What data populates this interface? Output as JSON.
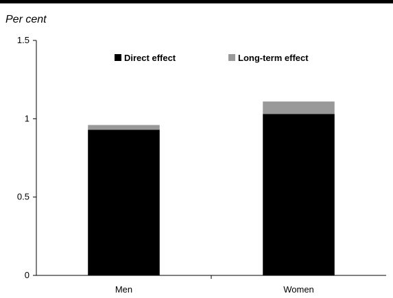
{
  "unit_label": "Per cent",
  "colors": {
    "direct": "#000000",
    "long_term": "#999999",
    "axis": "#000000"
  },
  "chart_data": {
    "type": "bar",
    "stacked": true,
    "categories": [
      "Men",
      "Women"
    ],
    "series": [
      {
        "name": "Direct effect",
        "values": [
          0.93,
          1.03
        ],
        "color": "#000000"
      },
      {
        "name": "Long-term effect",
        "values": [
          0.03,
          0.08
        ],
        "color": "#999999"
      }
    ],
    "ylim": [
      0,
      1.5
    ],
    "yticks": [
      0,
      0.5,
      1,
      1.5
    ],
    "ytick_labels": [
      "0",
      "0.5",
      "1",
      "1.5"
    ],
    "grid": false,
    "legend_position": "top"
  }
}
